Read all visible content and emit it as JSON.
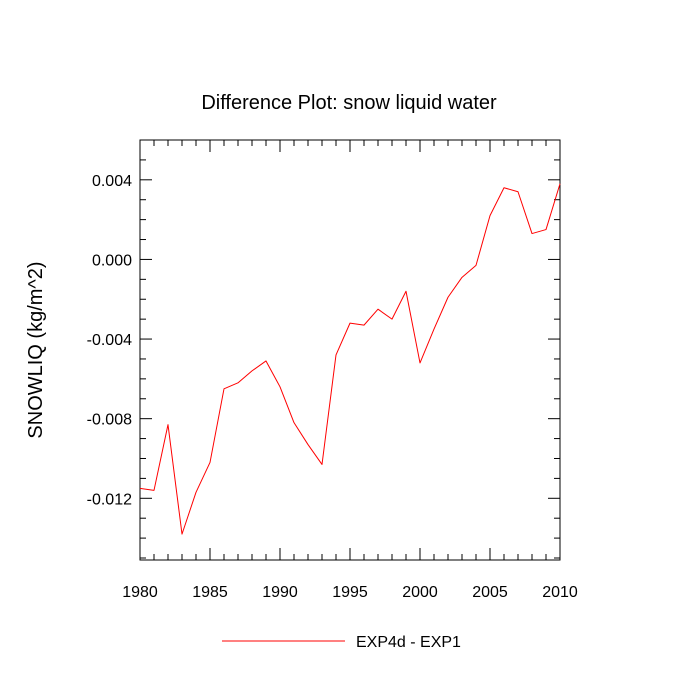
{
  "chart_data": {
    "type": "line",
    "title": "Difference Plot: snow liquid water",
    "xlabel": "",
    "ylabel": "SNOWLIQ  (kg/m^2)",
    "xlim": [
      1980,
      2010
    ],
    "ylim": [
      -0.0151,
      0.006
    ],
    "grid": false,
    "legend_position": "bottom-center",
    "x_ticks": [
      1980,
      1985,
      1990,
      1995,
      2000,
      2005,
      2010
    ],
    "x_tick_labels": [
      "1980",
      "1985",
      "1990",
      "1995",
      "2000",
      "2005",
      "2010"
    ],
    "y_ticks": [
      0.004,
      0.0,
      -0.004,
      -0.008,
      -0.012
    ],
    "y_tick_labels": [
      "0.004",
      "0.000",
      "-0.004",
      "-0.008",
      "-0.012"
    ],
    "series": [
      {
        "name": "EXP4d - EXP1",
        "color": "#ff0000",
        "x": [
          1980,
          1981,
          1982,
          1983,
          1984,
          1985,
          1986,
          1987,
          1988,
          1989,
          1990,
          1991,
          1992,
          1993,
          1994,
          1995,
          1996,
          1997,
          1998,
          1999,
          2000,
          2001,
          2002,
          2003,
          2004,
          2005,
          2006,
          2007,
          2008,
          2009,
          2010
        ],
        "values": [
          -0.0115,
          -0.0116,
          -0.0083,
          -0.0138,
          -0.0117,
          -0.0102,
          -0.0065,
          -0.0062,
          -0.0056,
          -0.0051,
          -0.0064,
          -0.0082,
          -0.0093,
          -0.0103,
          -0.0048,
          -0.0032,
          -0.0033,
          -0.0025,
          -0.003,
          -0.0016,
          -0.0052,
          -0.0035,
          -0.0019,
          -0.0009,
          -0.0003,
          0.0022,
          0.0036,
          0.0034,
          0.0013,
          0.0015,
          0.0038
        ]
      }
    ]
  }
}
